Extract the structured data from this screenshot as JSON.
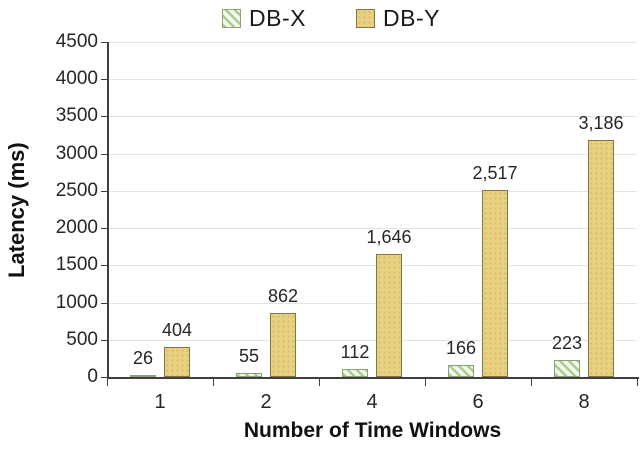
{
  "chart_data": {
    "type": "bar",
    "title": "",
    "xlabel": "Number of Time Windows",
    "ylabel": "Latency (ms)",
    "categories": [
      "1",
      "2",
      "4",
      "6",
      "8"
    ],
    "series": [
      {
        "name": "DB-X",
        "values": [
          26,
          55,
          112,
          166,
          223
        ],
        "labels": [
          "26",
          "55",
          "112",
          "166",
          "223"
        ]
      },
      {
        "name": "DB-Y",
        "values": [
          404,
          862,
          1646,
          2517,
          3186
        ],
        "labels": [
          "404",
          "862",
          "1,646",
          "2,517",
          "3,186"
        ]
      }
    ],
    "ylim": [
      0,
      4500
    ],
    "ytick_step": 500,
    "ytick_labels": [
      "0",
      "500",
      "1000",
      "1500",
      "2000",
      "2500",
      "3000",
      "3500",
      "4000",
      "4500"
    ],
    "grid": "horizontal",
    "legend_position": "top-center",
    "colors": {
      "dbx_bg": "#f2f7ec",
      "dbx_stripe": "#a8cd8e",
      "dbx_border": "#8aa374",
      "dby_fill": "#e7d183",
      "dby_dot": "#d9bd66",
      "dby_border": "#857440",
      "axis": "#3f3f3f",
      "grid": "#e4e4e4",
      "text": "#262626"
    }
  }
}
